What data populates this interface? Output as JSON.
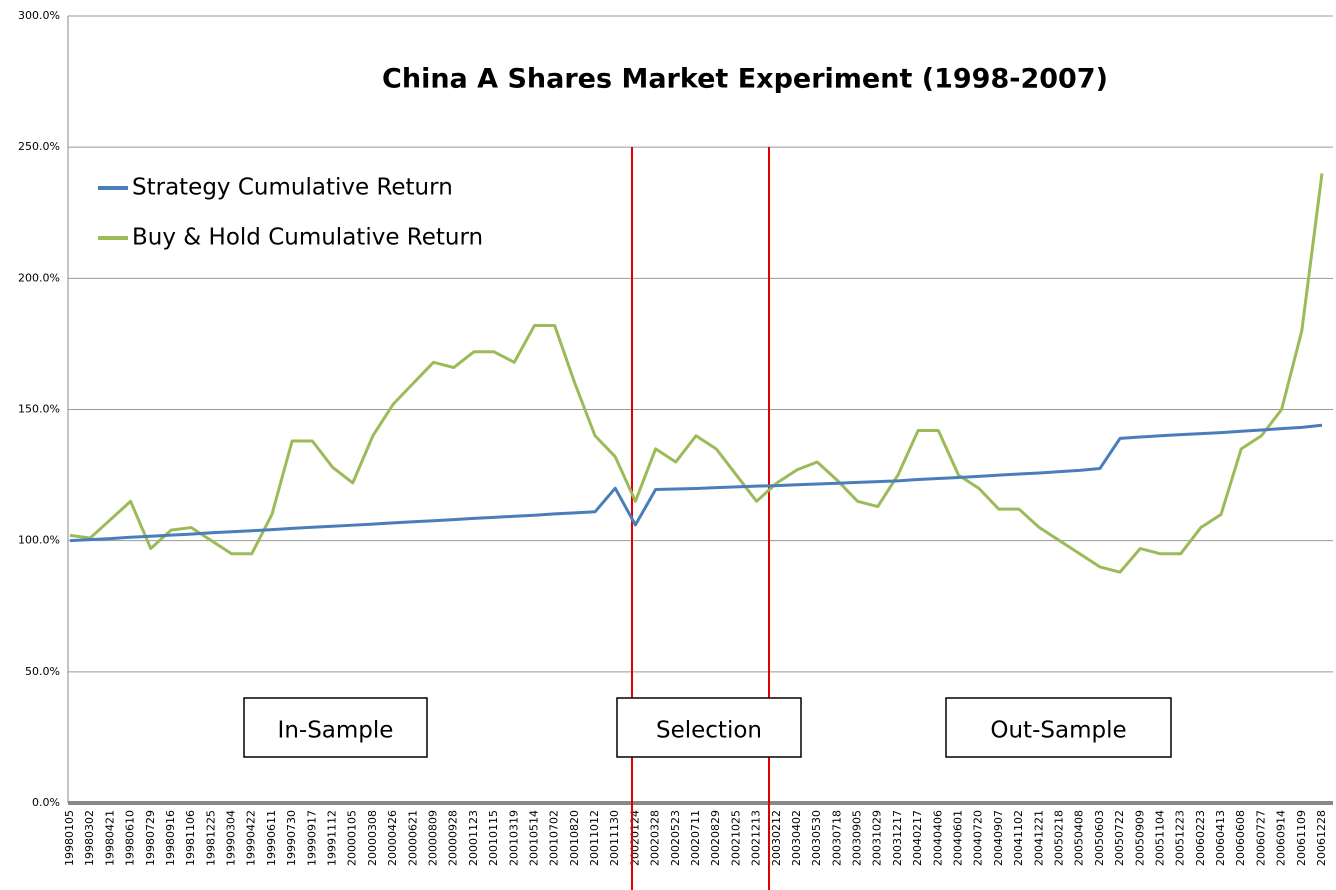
{
  "chart_data": {
    "type": "line",
    "title": "China A Shares Market Experiment (1998-2007)",
    "categories": [
      "19980105",
      "19980302",
      "19980421",
      "19980610",
      "19980729",
      "19980916",
      "19981106",
      "19981225",
      "19990304",
      "19990422",
      "19990611",
      "19990730",
      "19990917",
      "19991112",
      "20000105",
      "20000308",
      "20000426",
      "20000621",
      "20000809",
      "20000928",
      "20001123",
      "20010115",
      "20010319",
      "20010514",
      "20010702",
      "20010820",
      "20011012",
      "20011130",
      "20020124",
      "20020328",
      "20020523",
      "20020711",
      "20020829",
      "20021025",
      "20021213",
      "20030212",
      "20030402",
      "20030530",
      "20030718",
      "20030905",
      "20031029",
      "20031217",
      "20040217",
      "20040406",
      "20040601",
      "20040720",
      "20040907",
      "20041102",
      "20041221",
      "20050218",
      "20050408",
      "20050603",
      "20050722",
      "20050909",
      "20051104",
      "20051223",
      "20060223",
      "20060413",
      "20060608",
      "20060727",
      "20060914",
      "20061109",
      "20061228"
    ],
    "series": [
      {
        "name": "Strategy Cumulative Return",
        "color": "#4a7ebb",
        "values": [
          100,
          100.4,
          100.8,
          101.3,
          101.7,
          102.1,
          102.5,
          103,
          103.4,
          103.8,
          104.2,
          104.7,
          105.1,
          105.5,
          105.9,
          106.3,
          106.8,
          107.2,
          107.6,
          108,
          108.5,
          108.9,
          109.3,
          109.7,
          110.2,
          110.6,
          111,
          120,
          106,
          119.5,
          119.7,
          119.9,
          120.2,
          120.5,
          120.8,
          121,
          121.3,
          121.6,
          121.9,
          122.2,
          122.5,
          122.8,
          123.3,
          123.7,
          124.1,
          124.5,
          125,
          125.4,
          125.8,
          126.3,
          126.8,
          127.5,
          139,
          139.5,
          140,
          140.4,
          140.8,
          141.2,
          141.7,
          142.2,
          142.7,
          143.2,
          144
        ]
      },
      {
        "name": "Buy & Hold Cumulative Return",
        "color": "#9bbb59",
        "values": [
          102,
          101,
          108,
          115,
          97,
          104,
          105,
          100,
          95,
          95,
          110,
          138,
          138,
          128,
          122,
          140,
          152,
          160,
          168,
          166,
          172,
          172,
          168,
          182,
          182,
          160,
          140,
          132,
          115,
          135,
          130,
          140,
          135,
          125,
          115,
          122,
          127,
          130,
          123,
          115,
          113,
          125,
          142,
          142,
          125,
          120,
          112,
          112,
          105,
          100,
          95,
          90,
          88,
          97,
          95,
          95,
          105,
          110,
          135,
          140,
          150,
          180,
          240
        ]
      }
    ],
    "ylim": [
      0,
      300
    ],
    "yticks": [
      {
        "value": 0,
        "label": "0.0%"
      },
      {
        "value": 50,
        "label": "50.0%"
      },
      {
        "value": 100,
        "label": "100.0%"
      },
      {
        "value": 150,
        "label": "150.0%"
      },
      {
        "value": 200,
        "label": "200.0%"
      },
      {
        "value": 250,
        "label": "250.0%"
      },
      {
        "value": 300,
        "label": "300.0%"
      }
    ],
    "grid": true,
    "legend": "upper-left",
    "annotations": [
      "In-Sample",
      "Selection",
      "Out-Sample"
    ]
  }
}
